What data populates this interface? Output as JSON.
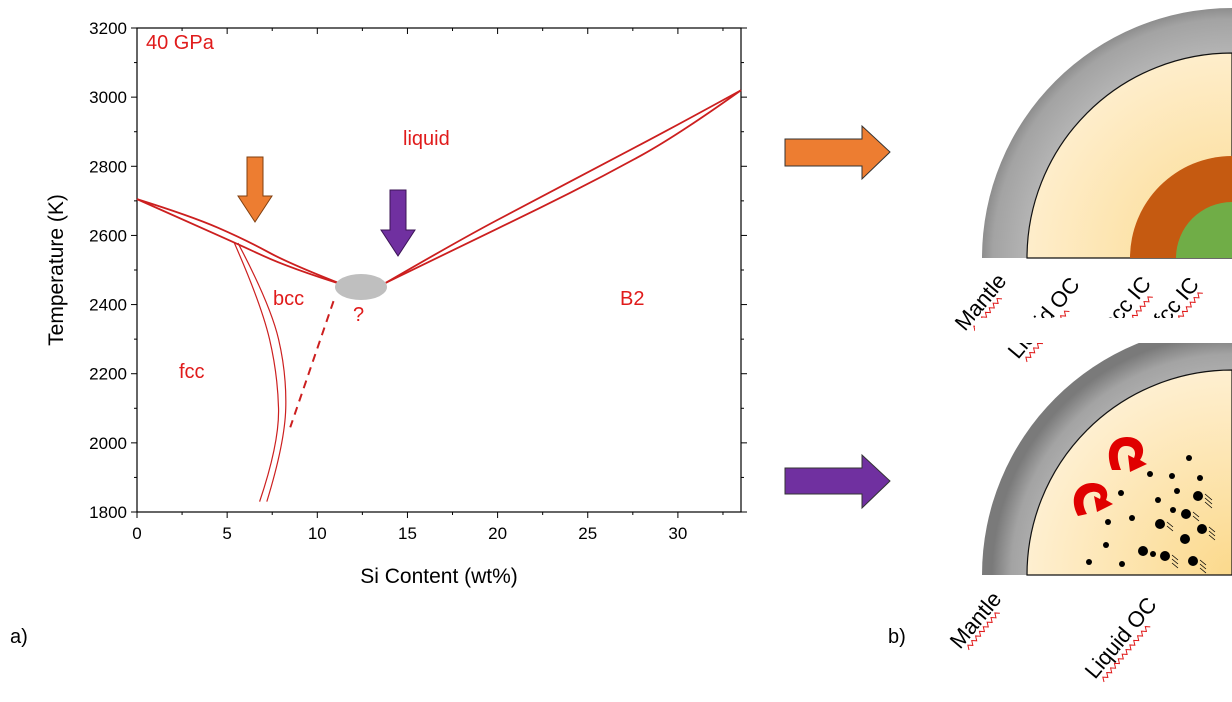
{
  "panel_labels": {
    "a": "a)",
    "b": "b)"
  },
  "colors": {
    "boundary": "#cc1f1f",
    "label_red": "#e01b1b",
    "orange_arrow": "#ed7d31",
    "purple_arrow": "#7030a0",
    "mantle": "#a6a6a6",
    "liquid_oc": "#fde9bf",
    "bcc_ic": "#c55a11",
    "fcc_ic": "#70ad47",
    "uncertain_zone": "#bfbfbf"
  },
  "chart_data": {
    "type": "line",
    "title": "",
    "xlabel": "Si Content (wt%)",
    "ylabel": "Temperature (K)",
    "xlim": [
      0,
      33.5
    ],
    "ylim": [
      1800,
      3200
    ],
    "xticks": [
      0,
      5,
      10,
      15,
      20,
      25,
      30
    ],
    "yticks": [
      1800,
      2000,
      2200,
      2400,
      2600,
      2800,
      3000,
      3200
    ],
    "grid": false,
    "annotations": {
      "pressure": "40 GPa",
      "liquid": "liquid",
      "bcc": "bcc",
      "fcc": "fcc",
      "b2": "B2",
      "question": "?"
    },
    "series": [
      {
        "values_x": [
          0,
          3,
          6,
          8.5,
          11.5
        ],
        "values_y": [
          2705,
          2656,
          2588,
          2517,
          2456
        ]
      },
      {
        "values_x": [
          0,
          3,
          5.5,
          8.5,
          11.5
        ],
        "values_y": [
          2705,
          2635,
          2577,
          2505,
          2456
        ]
      },
      {
        "values_x": [
          13.8,
          18,
          22,
          26,
          30,
          33.5
        ],
        "values_y": [
          2463,
          2590,
          2700,
          2810,
          2920,
          3020
        ]
      },
      {
        "values_x": [
          13.8,
          18,
          22,
          26,
          30,
          33.5
        ],
        "values_y": [
          2463,
          2570,
          2670,
          2775,
          2890,
          3020
        ]
      },
      {
        "values_x": [
          5.4,
          6.9,
          7.8,
          7.9,
          6.8
        ],
        "values_y": [
          2578,
          2400,
          2200,
          2000,
          1830
        ]
      },
      {
        "values_x": [
          5.6,
          7.4,
          8.3,
          8.2,
          7.2
        ],
        "values_y": [
          2578,
          2400,
          2200,
          2000,
          1830
        ]
      },
      {
        "values_x": [
          10.9,
          8.5
        ],
        "values_y": [
          2410,
          2045
        ],
        "dashed": true
      }
    ]
  },
  "core_top": {
    "labels": [
      "Mantle",
      "Liquid OC",
      "bcc IC",
      "fcc IC"
    ]
  },
  "core_bottom": {
    "labels": [
      "Mantle",
      "Liquid OC"
    ]
  }
}
